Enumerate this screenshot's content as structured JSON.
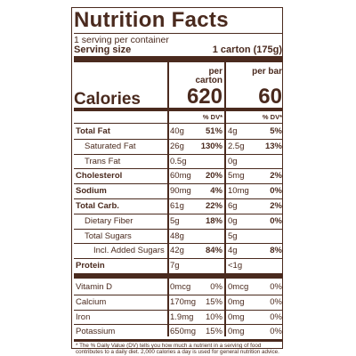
{
  "header": {
    "title": "Nutrition Facts",
    "servings": "1 serving per container",
    "serving_size_label": "Serving size",
    "serving_size": "1 carton (175g)"
  },
  "columns": [
    {
      "heading": "per carton",
      "calories": "620",
      "dv_heading": "% DV*"
    },
    {
      "heading": "per bar",
      "calories": "60",
      "dv_heading": "% DV*"
    }
  ],
  "calories_label": "Calories",
  "nutrients": [
    {
      "name": "Total Fat",
      "bold": true,
      "indent": 0,
      "cells": [
        [
          "40g",
          "51%"
        ],
        [
          "4g",
          "5%"
        ]
      ]
    },
    {
      "name": "Saturated Fat",
      "bold": false,
      "indent": 1,
      "cells": [
        [
          "26g",
          "130%"
        ],
        [
          "2.5g",
          "13%"
        ]
      ]
    },
    {
      "name": "Trans Fat",
      "bold": false,
      "indent": 1,
      "cells": [
        [
          "0.5g"
        ],
        [
          "0g"
        ]
      ]
    },
    {
      "name": "Cholesterol",
      "bold": true,
      "indent": 0,
      "cells": [
        [
          "60mg",
          "20%"
        ],
        [
          "5mg",
          "2%"
        ]
      ]
    },
    {
      "name": "Sodium",
      "bold": true,
      "indent": 0,
      "cells": [
        [
          "90mg",
          "4%"
        ],
        [
          "10mg",
          "0%"
        ]
      ]
    },
    {
      "name": "Total Carb.",
      "bold": true,
      "indent": 0,
      "cells": [
        [
          "61g",
          "22%"
        ],
        [
          "6g",
          "2%"
        ]
      ]
    },
    {
      "name": "Dietary Fiber",
      "bold": false,
      "indent": 1,
      "cells": [
        [
          "5g",
          "18%"
        ],
        [
          "0g",
          "0%"
        ]
      ]
    },
    {
      "name": "Total Sugars",
      "bold": false,
      "indent": 1,
      "cells": [
        [
          "48g"
        ],
        [
          "5g"
        ]
      ]
    },
    {
      "name": "Incl. Added Sugars",
      "bold": false,
      "indent": 2,
      "cells": [
        [
          "42g",
          "84%"
        ],
        [
          "4g",
          "8%"
        ]
      ]
    },
    {
      "name": "Protein",
      "bold": true,
      "indent": 0,
      "cells": [
        [
          "7g"
        ],
        [
          "<1g"
        ]
      ]
    }
  ],
  "vitamins": [
    {
      "name": "Vitamin D",
      "cells": [
        [
          "0mcg",
          "0%"
        ],
        [
          "0mcg",
          "0%"
        ]
      ]
    },
    {
      "name": "Calcium",
      "cells": [
        [
          "170mg",
          "15%"
        ],
        [
          "0mg",
          "0%"
        ]
      ]
    },
    {
      "name": "Iron",
      "cells": [
        [
          "1.9mg",
          "10%"
        ],
        [
          "0mg",
          "0%"
        ]
      ]
    },
    {
      "name": "Potassium",
      "cells": [
        [
          "650mg",
          "15%"
        ],
        [
          "0mg",
          "0%"
        ]
      ]
    }
  ],
  "footnote": "* The % Daily Value (DV) tells you how much a nutrient in a serving of food contributes to a daily diet. 2,000 calories a day is used for general nutrition advice."
}
